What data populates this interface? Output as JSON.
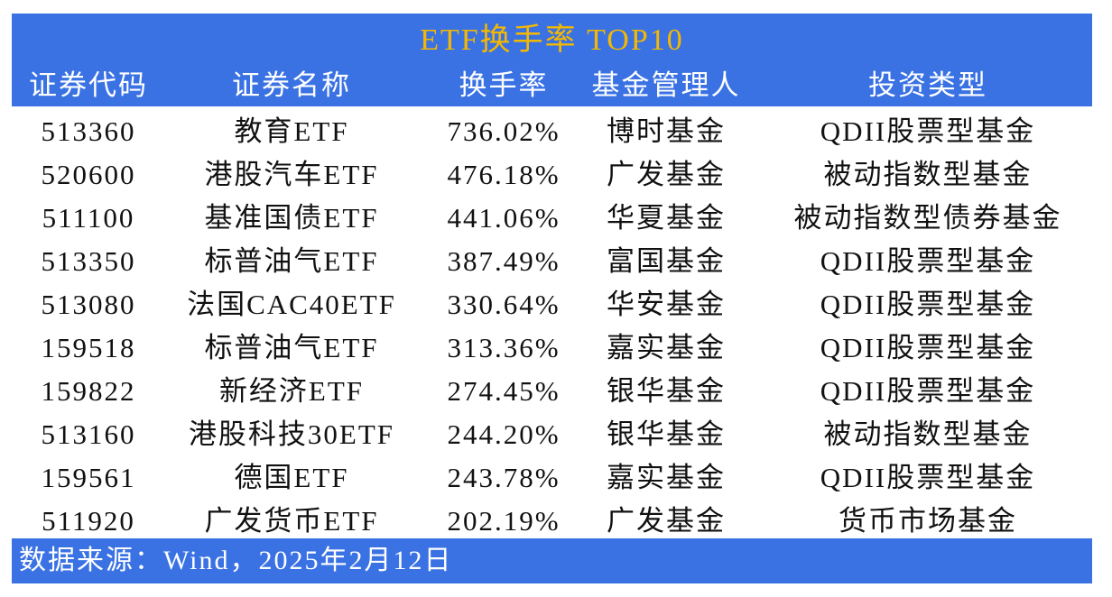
{
  "title": "ETF换手率 TOP10",
  "columns": [
    "证券代码",
    "证券名称",
    "换手率",
    "基金管理人",
    "投资类型"
  ],
  "rows": [
    [
      "513360",
      "教育ETF",
      "736.02%",
      "博时基金",
      "QDII股票型基金"
    ],
    [
      "520600",
      "港股汽车ETF",
      "476.18%",
      "广发基金",
      "被动指数型基金"
    ],
    [
      "511100",
      "基准国债ETF",
      "441.06%",
      "华夏基金",
      "被动指数型债券基金"
    ],
    [
      "513350",
      "标普油气ETF",
      "387.49%",
      "富国基金",
      "QDII股票型基金"
    ],
    [
      "513080",
      "法国CAC40ETF",
      "330.64%",
      "华安基金",
      "QDII股票型基金"
    ],
    [
      "159518",
      "标普油气ETF",
      "313.36%",
      "嘉实基金",
      "QDII股票型基金"
    ],
    [
      "159822",
      "新经济ETF",
      "274.45%",
      "银华基金",
      "QDII股票型基金"
    ],
    [
      "513160",
      "港股科技30ETF",
      "244.20%",
      "银华基金",
      "被动指数型基金"
    ],
    [
      "159561",
      "德国ETF",
      "243.78%",
      "嘉实基金",
      "QDII股票型基金"
    ],
    [
      "511920",
      "广发货币ETF",
      "202.19%",
      "广发基金",
      "货币市场基金"
    ]
  ],
  "footer": "数据来源：Wind，2025年2月12日",
  "colors": {
    "header_bg": "#3a72e4",
    "title": "#f5b800"
  }
}
